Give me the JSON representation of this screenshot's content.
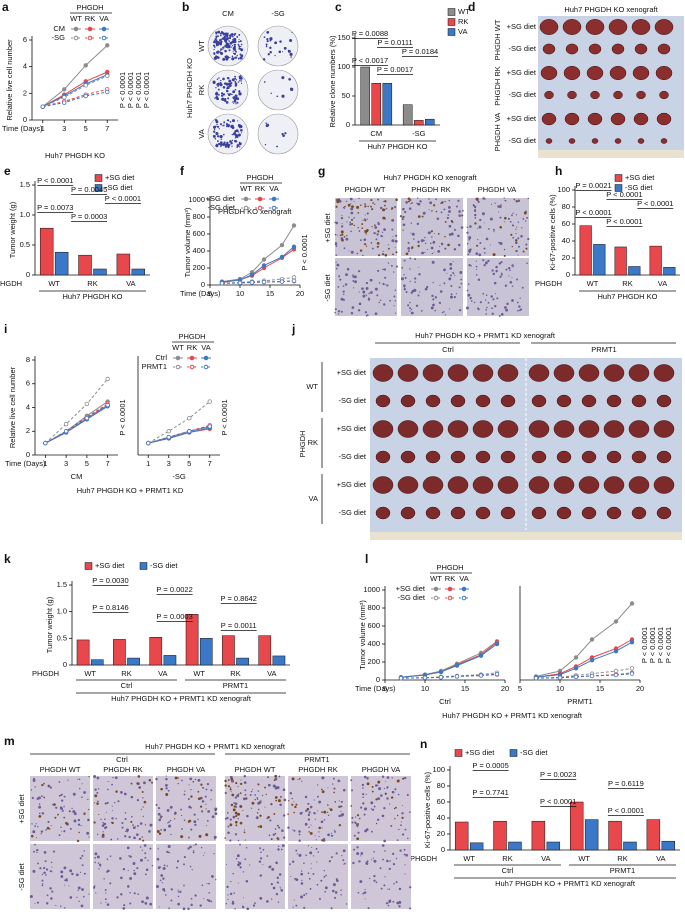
{
  "chart_data": [
    {
      "type": "line",
      "panel": "a",
      "ylabel": "Relative live cell number",
      "xlabel": "Time (Days)",
      "x": [
        1,
        3,
        5,
        7
      ],
      "xlim": [
        0,
        8
      ],
      "xticks": [
        1,
        3,
        5,
        7
      ],
      "ylim": [
        0,
        6
      ],
      "yticks": [
        0,
        2,
        4,
        6
      ],
      "legend_title": "PHGDH",
      "columns": [
        "WT",
        "RK",
        "VA"
      ],
      "colors": [
        "#8c8c8c",
        "#e8474c",
        "#3b78c8"
      ],
      "series": [
        {
          "name": "CM",
          "dashed": false,
          "values": [
            [
              1,
              2.3,
              4.1,
              5.6
            ],
            [
              1,
              1.9,
              2.9,
              3.6
            ],
            [
              1,
              1.8,
              2.7,
              3.4
            ]
          ]
        },
        {
          "name": "-SG",
          "dashed": true,
          "values": [
            [
              1,
              1.7,
              2.6,
              3.3
            ],
            [
              1,
              1.4,
              1.9,
              2.3
            ],
            [
              1,
              1.3,
              1.8,
              2.1
            ]
          ]
        }
      ],
      "annotations": [
        "P < 0.0001",
        "P < 0.0001",
        "P < 0.0001",
        "P < 0.0001"
      ],
      "footer": "Huh7 PHGDH KO"
    },
    {
      "type": "bar",
      "panel": "c",
      "ylabel": "Relative clone numbers (%)",
      "categories": [
        "CM",
        "-SG"
      ],
      "ylim": [
        0,
        150
      ],
      "yticks": [
        0,
        50,
        100,
        150
      ],
      "series": [
        {
          "name": "WT",
          "color": "#8c8c8c",
          "values": [
            100,
            35
          ]
        },
        {
          "name": "RK",
          "color": "#e8474c",
          "values": [
            72,
            8
          ]
        },
        {
          "name": "VA",
          "color": "#3b78c8",
          "values": [
            72,
            10
          ]
        }
      ],
      "annotations": [
        "P = 0.0088",
        "P = 0.0111",
        "P = 0.0184",
        "P < 0.0017",
        "P = 0.0017"
      ],
      "footer": "Huh7 PHGDH KO"
    },
    {
      "type": "bar",
      "panel": "e",
      "ylabel": "Tumor weight (g)",
      "category_title": "PHGDH",
      "categories": [
        "WT",
        "RK",
        "VA"
      ],
      "ylim": [
        0,
        1.5
      ],
      "yticks": [
        0,
        0.5,
        {
          "value": 1,
          "label": "1.0"
        },
        1.5
      ],
      "series": [
        {
          "name": "+SG diet",
          "color": "#e8474c",
          "values": [
            0.78,
            0.33,
            0.35
          ]
        },
        {
          "name": "-SG diet",
          "color": "#3b78c8",
          "values": [
            0.38,
            0.1,
            0.1
          ]
        }
      ],
      "annotations": [
        "P < 0.0001",
        "P = 0.0045",
        "P < 0.0001",
        "P = 0.0073",
        "P = 0.0003"
      ],
      "footer": "Huh7 PHGDH KO"
    },
    {
      "type": "line",
      "panel": "f",
      "ylabel": "Tumor volume (mm³)",
      "xlabel": "Time (Days)",
      "inset": "PHGDH KO xenograft",
      "x": [
        7,
        10,
        12,
        14,
        17,
        19
      ],
      "xlim": [
        5,
        20
      ],
      "xticks": [
        5,
        10,
        15,
        20
      ],
      "ylim": [
        0,
        1000
      ],
      "yticks": [
        0,
        200,
        400,
        600,
        800,
        1000
      ],
      "legend_title": "PHGDH",
      "columns": [
        "WT",
        "RK",
        "VA"
      ],
      "colors": [
        "#8c8c8c",
        "#e8474c",
        "#3b78c8"
      ],
      "series": [
        {
          "name": "+SG diet",
          "dashed": false,
          "values": [
            [
              40,
              70,
              150,
              300,
              470,
              700
            ],
            [
              30,
              60,
              110,
              200,
              320,
              420
            ],
            [
              35,
              60,
              120,
              230,
              330,
              450
            ]
          ]
        },
        {
          "name": "-SG diet",
          "dashed": true,
          "values": [
            [
              20,
              30,
              40,
              50,
              70,
              90
            ],
            [
              20,
              25,
              30,
              35,
              40,
              45
            ],
            [
              20,
              25,
              30,
              35,
              40,
              50
            ]
          ]
        }
      ],
      "annotations": [
        "P < 0.0001"
      ]
    },
    {
      "type": "bar",
      "panel": "h",
      "ylabel": "Ki-67-positive cells (%)",
      "category_title": "PHGDH",
      "categories": [
        "WT",
        "RK",
        "VA"
      ],
      "ylim": [
        0,
        100
      ],
      "yticks": [
        0,
        20,
        40,
        60,
        80,
        100
      ],
      "series": [
        {
          "name": "+SG diet",
          "color": "#e8474c",
          "values": [
            58,
            33,
            34
          ]
        },
        {
          "name": "-SG diet",
          "color": "#3b78c8",
          "values": [
            36,
            10,
            9
          ]
        }
      ],
      "annotations": [
        "P = 0.0021",
        "P < 0.0001",
        "P < 0.0001",
        "P < 0.0001",
        "P < 0.0001"
      ],
      "footer": "Huh7 PHGDH KO"
    },
    {
      "type": "line",
      "panel": "i",
      "ylabel": "Relative live cell number",
      "xlabel": "Time (Days)",
      "subtitle": "CM",
      "x": [
        1,
        3,
        5,
        7
      ],
      "xlim": [
        0,
        8
      ],
      "xticks": [
        1,
        3,
        5,
        7
      ],
      "ylim": [
        0,
        8
      ],
      "yticks": [
        0,
        2,
        4,
        6,
        8
      ],
      "colors": [
        "#8c8c8c",
        "#e8474c",
        "#3b78c8"
      ],
      "series": [
        {
          "name": "Ctrl",
          "dashed": false,
          "values": [
            [
              1,
              2,
              3.3,
              4.5
            ],
            [
              1,
              1.9,
              3.1,
              4.2
            ],
            [
              1,
              1.9,
              3,
              4.1
            ]
          ]
        },
        {
          "name": "PRMT1",
          "dashed": true,
          "values": [
            [
              1,
              2.6,
              4.3,
              6.4
            ],
            [
              1,
              2,
              3.2,
              4.3
            ],
            [
              1,
              2,
              3.1,
              4.2
            ]
          ]
        }
      ],
      "annotations": [
        "P < 0.0001"
      ],
      "footer": "Huh7 PHGDH KO + PRMT1 KD"
    },
    {
      "type": "line",
      "subtitle": "-SG",
      "x": [
        1,
        3,
        5,
        7
      ],
      "xlim": [
        0,
        8
      ],
      "xticks": [
        1,
        3,
        5,
        7
      ],
      "ylim": [
        0,
        8
      ],
      "legend_title": "PHGDH",
      "columns": [
        "WT",
        "RK",
        "VA"
      ],
      "colors": [
        "#8c8c8c",
        "#e8474c",
        "#3b78c8"
      ],
      "series": [
        {
          "name": "Ctrl",
          "dashed": false,
          "values": [
            [
              1,
              1.5,
              2,
              2.4
            ],
            [
              1,
              1.4,
              1.9,
              2.2
            ],
            [
              1,
              1.4,
              1.9,
              2.3
            ]
          ]
        },
        {
          "name": "PRMT1",
          "dashed": true,
          "values": [
            [
              1,
              2,
              3.1,
              4.5
            ],
            [
              1,
              1.5,
              2,
              2.5
            ],
            [
              1,
              1.5,
              2,
              2.4
            ]
          ]
        }
      ],
      "annotations": [
        "P < 0.0001"
      ]
    },
    {
      "type": "bar",
      "panel": "k",
      "ylabel": "Tumor weight (g)",
      "category_title": "PHGDH",
      "categories": [
        "WT",
        "RK",
        "VA",
        "WT",
        "RK",
        "VA"
      ],
      "groups": [
        "Ctrl",
        "PRMT1"
      ],
      "ylim": [
        0,
        1.5
      ],
      "yticks": [
        0,
        0.5,
        {
          "value": 1,
          "label": "1.0"
        },
        1.5
      ],
      "series": [
        {
          "name": "+SG diet",
          "color": "#e8474c",
          "values": [
            0.47,
            0.48,
            0.52,
            0.95,
            0.55,
            0.55
          ]
        },
        {
          "name": "-SG diet",
          "color": "#3b78c8",
          "values": [
            0.1,
            0.13,
            0.18,
            0.5,
            0.13,
            0.17
          ]
        }
      ],
      "annotations": [
        "P = 0.0030",
        "P = 0.0022",
        "P = 0.8642",
        "P = 0.8146",
        "P = 0.0003",
        "P = 0.0011"
      ],
      "footer": "Huh7 PHGDH KO + PRMT1 KD xenograft"
    },
    {
      "type": "line",
      "panel": "l",
      "ylabel": "Tumor volume (mm³)",
      "xlabel": "Time (Days)",
      "subtitle": "Ctrl",
      "x": [
        7,
        10,
        12,
        14,
        17,
        19
      ],
      "xlim": [
        5,
        20
      ],
      "xticks": [
        5,
        10,
        15,
        20
      ],
      "ylim": [
        0,
        1000
      ],
      "yticks": [
        0,
        200,
        400,
        600,
        800,
        1000
      ],
      "legend_title": "PHGDH",
      "columns": [
        "WT",
        "RK",
        "VA"
      ],
      "colors": [
        "#8c8c8c",
        "#e8474c",
        "#3b78c8"
      ],
      "series": [
        {
          "name": "+SG diet",
          "dashed": false,
          "values": [
            [
              30,
              60,
              100,
              180,
              300,
              430
            ],
            [
              30,
              55,
              90,
              170,
              280,
              420
            ],
            [
              30,
              55,
              90,
              160,
              270,
              400
            ]
          ]
        },
        {
          "name": "-SG diet",
          "dashed": true,
          "values": [
            [
              20,
              25,
              35,
              45,
              60,
              80
            ],
            [
              20,
              25,
              30,
              40,
              50,
              60
            ],
            [
              20,
              25,
              30,
              40,
              50,
              65
            ]
          ]
        }
      ],
      "footer": "Huh7 PHGDH KO + PRMT1 KD xenograft"
    },
    {
      "type": "line",
      "subtitle": "PRMT1",
      "x": [
        7,
        10,
        12,
        14,
        17,
        19
      ],
      "xlim": [
        5,
        20
      ],
      "xticks": [
        5,
        10,
        15,
        20
      ],
      "ylim": [
        0,
        1000
      ],
      "colors": [
        "#8c8c8c",
        "#e8474c",
        "#3b78c8"
      ],
      "series": [
        {
          "name": "+SG diet",
          "dashed": false,
          "values": [
            [
              40,
              100,
              250,
              450,
              650,
              850
            ],
            [
              30,
              70,
              150,
              250,
              350,
              450
            ],
            [
              30,
              60,
              130,
              220,
              320,
              420
            ]
          ]
        },
        {
          "name": "-SG diet",
          "dashed": true,
          "values": [
            [
              20,
              30,
              50,
              70,
              100,
              130
            ],
            [
              20,
              25,
              35,
              45,
              60,
              80
            ],
            [
              20,
              25,
              35,
              45,
              55,
              70
            ]
          ]
        }
      ],
      "annotations": [
        "P < 0.0001",
        "P < 0.0001",
        "P < 0.0001",
        "P < 0.0001"
      ]
    },
    {
      "type": "bar",
      "panel": "n",
      "ylabel": "Ki-67-positive cells (%)",
      "category_title": "PHGDH",
      "categories": [
        "WT",
        "RK",
        "VA",
        "WT",
        "RK",
        "VA"
      ],
      "groups": [
        "Ctrl",
        "PRMT1"
      ],
      "ylim": [
        0,
        100
      ],
      "yticks": [
        0,
        20,
        40,
        60,
        80,
        100
      ],
      "series": [
        {
          "name": "+SG diet",
          "color": "#e8474c",
          "values": [
            35,
            36,
            36,
            60,
            36,
            38
          ]
        },
        {
          "name": "-SG diet",
          "color": "#3b78c8",
          "values": [
            9,
            10,
            10,
            38,
            10,
            11
          ]
        }
      ],
      "annotations": [
        "P = 0.0005",
        "P = 0.0023",
        "P = 0.6119",
        "P = 0.7741",
        "P < 0.0001",
        "P < 0.0001"
      ],
      "footer": "Huh7 PHGDH KO + PRMT1 KD xenograft"
    }
  ],
  "images": [
    {
      "panel": "b",
      "columns": [
        "CM",
        "-SG"
      ],
      "rows": [
        "WT",
        "RK",
        "VA"
      ],
      "side": "Huh7 PHGDH KO"
    },
    {
      "panel": "d",
      "title": "Huh7 PHGDH KO xenograft",
      "groups": [
        "PHGDH WT",
        "PHGDH RK",
        "PHGDH VA"
      ],
      "rows": [
        "+SG diet",
        "-SG diet"
      ]
    },
    {
      "panel": "g",
      "title": "Huh7 PHGDH KO xenograft",
      "columns": [
        "PHGDH WT",
        "PHGDH RK",
        "PHGDH VA"
      ],
      "rows": [
        "+SG diet",
        "-SG diet"
      ]
    },
    {
      "panel": "j",
      "title": "Huh7 PHGDH KO + PRMT1 KD xenograft",
      "columns": [
        "Ctrl",
        "PRMT1"
      ],
      "side": "PHGDH",
      "groups": [
        "WT",
        "RK",
        "VA"
      ],
      "rows": [
        "+SG diet",
        "-SG diet"
      ]
    },
    {
      "panel": "m",
      "title": "Huh7 PHGDH KO + PRMT1 KD xenograft",
      "columns": [
        "Ctrl",
        "PRMT1"
      ],
      "subcolumns": [
        "PHGDH WT",
        "PHGDH RK",
        "PHGDH VA"
      ],
      "rows": [
        "+SG diet",
        "-SG diet"
      ]
    }
  ]
}
